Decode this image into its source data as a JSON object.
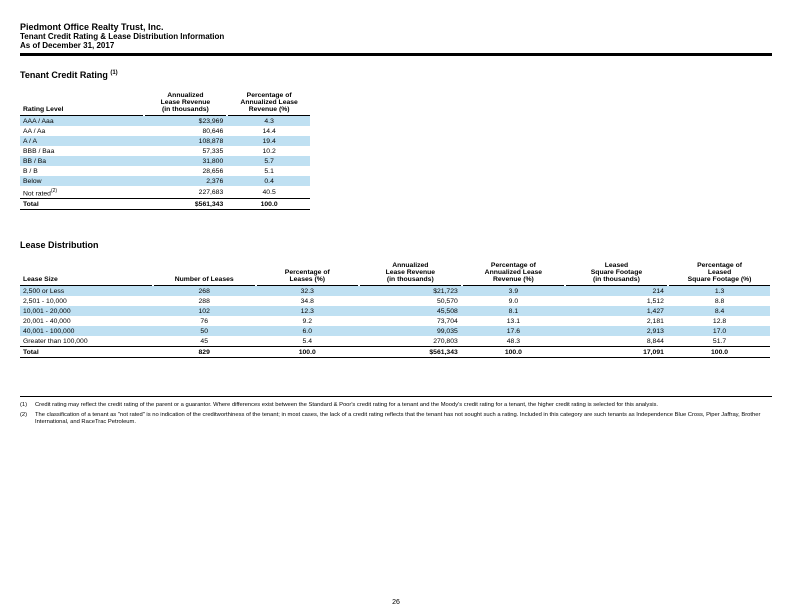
{
  "header": {
    "company": "Piedmont Office Realty Trust, Inc.",
    "subtitle": "Tenant Credit Rating & Lease Distribution Information",
    "asof": "As of December 31, 2017"
  },
  "credit": {
    "title": "Tenant Credit Rating ",
    "sup": "(1)",
    "columns": [
      "Rating Level",
      "Annualized Lease Revenue (in thousands)",
      "Percentage of Annualized Lease Revenue (%)"
    ],
    "col_h": {
      "c1": "Rating Level",
      "c2a": "Annualized",
      "c2b": "Lease Revenue",
      "c2c": "(in thousands)",
      "c3a": "Percentage of",
      "c3b": "Annualized Lease",
      "c3c": "Revenue (%)"
    },
    "rows": [
      {
        "label": "AAA / Aaa",
        "rev": "$23,969",
        "pct": "4.3",
        "stripe": true
      },
      {
        "label": "AA / Aa",
        "rev": "80,646",
        "pct": "14.4",
        "stripe": false
      },
      {
        "label": "A / A",
        "rev": "108,878",
        "pct": "19.4",
        "stripe": true
      },
      {
        "label": "BBB / Baa",
        "rev": "57,335",
        "pct": "10.2",
        "stripe": false
      },
      {
        "label": "BB / Ba",
        "rev": "31,800",
        "pct": "5.7",
        "stripe": true
      },
      {
        "label": "B / B",
        "rev": "28,656",
        "pct": "5.1",
        "stripe": false
      },
      {
        "label": "Below",
        "rev": "2,376",
        "pct": "0.4",
        "stripe": true
      },
      {
        "label": "Not rated",
        "sup": "(2)",
        "rev": "227,683",
        "pct": "40.5",
        "stripe": false
      }
    ],
    "total": {
      "label": "Total",
      "rev": "$561,343",
      "pct": "100.0"
    }
  },
  "lease": {
    "title": "Lease Distribution",
    "col_h": {
      "c1": "Lease Size",
      "c2": "Number of Leases",
      "c3a": "Percentage of",
      "c3b": "Leases (%)",
      "c4a": "Annualized",
      "c4b": "Lease Revenue",
      "c4c": "(in thousands)",
      "c5a": "Percentage of",
      "c5b": "Annualized Lease",
      "c5c": "Revenue (%)",
      "c6a": "Leased",
      "c6b": "Square Footage",
      "c6c": "(in thousands)",
      "c7a": "Percentage of",
      "c7b": "Leased",
      "c7c": "Square Footage (%)"
    },
    "rows": [
      {
        "size": "2,500 or Less",
        "num": "268",
        "pctl": "32.3",
        "rev": "$21,723",
        "pctr": "3.9",
        "sf": "214",
        "pctsf": "1.3",
        "stripe": true
      },
      {
        "size": "2,501 - 10,000",
        "num": "288",
        "pctl": "34.8",
        "rev": "50,570",
        "pctr": "9.0",
        "sf": "1,512",
        "pctsf": "8.8",
        "stripe": false
      },
      {
        "size": "10,001 - 20,000",
        "num": "102",
        "pctl": "12.3",
        "rev": "45,508",
        "pctr": "8.1",
        "sf": "1,427",
        "pctsf": "8.4",
        "stripe": true
      },
      {
        "size": "20,001 - 40,000",
        "num": "76",
        "pctl": "9.2",
        "rev": "73,704",
        "pctr": "13.1",
        "sf": "2,181",
        "pctsf": "12.8",
        "stripe": false
      },
      {
        "size": "40,001 - 100,000",
        "num": "50",
        "pctl": "6.0",
        "rev": "99,035",
        "pctr": "17.6",
        "sf": "2,913",
        "pctsf": "17.0",
        "stripe": true
      },
      {
        "size": "Greater than 100,000",
        "num": "45",
        "pctl": "5.4",
        "rev": "270,803",
        "pctr": "48.3",
        "sf": "8,844",
        "pctsf": "51.7",
        "stripe": false
      }
    ],
    "total": {
      "size": "Total",
      "num": "829",
      "pctl": "100.0",
      "rev": "$561,343",
      "pctr": "100.0",
      "sf": "17,091",
      "pctsf": "100.0"
    }
  },
  "footnotes": {
    "f1": {
      "n": "(1)",
      "t": "Credit rating may reflect the credit rating of the parent or a guarantor.  Where differences exist between the Standard & Poor's credit rating for a tenant and the Moody's credit rating for a tenant, the higher credit rating is selected for this analysis."
    },
    "f2": {
      "n": "(2)",
      "t": "The classification of a tenant as \"not rated\" is no indication of the creditworthiness of the tenant; in most cases, the lack of a credit rating reflects that the tenant has not sought such a rating.  Included in this category are such tenants as Independence Blue Cross, Piper Jaffray, Brother International, and RaceTrac Petroleum."
    }
  },
  "pagenum": "26",
  "colors": {
    "stripe": "#bfe0f2",
    "rule": "#000000",
    "text": "#000000",
    "bg": "#ffffff"
  }
}
